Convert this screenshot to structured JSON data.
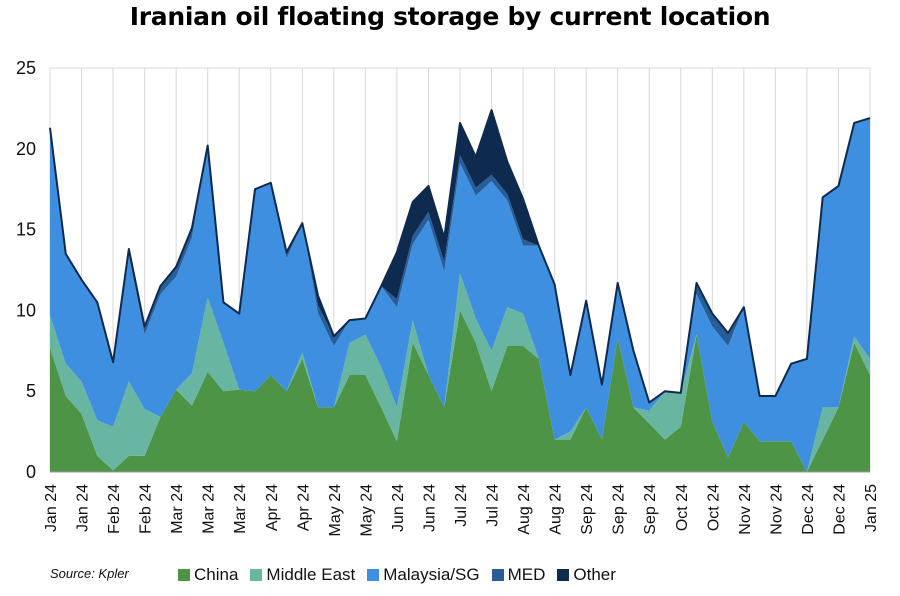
{
  "title": "Iranian oil floating storage by current location",
  "source": "Source: Kpler",
  "chart_data": {
    "type": "area",
    "stacked": true,
    "ylim": [
      0,
      25
    ],
    "yticks": [
      0,
      5,
      10,
      15,
      20,
      25
    ],
    "grid": "vertical",
    "legend_position": "bottom",
    "x_tick_labels": [
      "Jan 24",
      "Jan 24",
      "Feb 24",
      "Feb 24",
      "Mar 24",
      "Mar 24",
      "Mar 24",
      "Apr 24",
      "Apr 24",
      "May 24",
      "May 24",
      "Jun 24",
      "Jun 24",
      "Jul 24",
      "Jul 24",
      "Aug 24",
      "Aug 24",
      "Sep 24",
      "Sep 24",
      "Sep 24",
      "Oct 24",
      "Oct 24",
      "Nov 24",
      "Nov 24",
      "Dec 24",
      "Dec 24",
      "Jan 25"
    ],
    "series": [
      {
        "name": "China",
        "color": "#4e9447",
        "values": [
          7.7,
          4.7,
          3.6,
          1.0,
          0.1,
          1.0,
          1.0,
          3.4,
          5.1,
          4.1,
          6.2,
          5.0,
          5.1,
          5.0,
          6.0,
          5.0,
          7.0,
          4.0,
          4.0,
          6.0,
          6.0,
          4.0,
          1.9,
          8.0,
          6.0,
          4.0,
          10.0,
          8.0,
          5.0,
          7.8,
          7.8,
          7.0,
          2.0,
          2.0,
          4.0,
          2.0,
          8.3,
          4.0,
          3.0,
          2.0,
          2.8,
          8.5,
          3.1,
          0.9,
          3.1,
          1.9,
          1.9,
          1.9,
          0.0,
          2.0,
          4.0,
          8.0,
          6.0
        ]
      },
      {
        "name": "Middle East",
        "color": "#68b6a1",
        "values": [
          2.0,
          2.0,
          2.0,
          2.2,
          2.7,
          4.6,
          2.9,
          0.0,
          0.0,
          2.0,
          4.6,
          3.0,
          0.0,
          0.0,
          0.0,
          0.0,
          0.4,
          0.0,
          0.0,
          2.0,
          2.5,
          2.5,
          2.1,
          1.4,
          0.0,
          0.0,
          2.3,
          1.5,
          2.5,
          2.4,
          2.0,
          0.0,
          0.0,
          0.5,
          0.0,
          0.0,
          0.0,
          0.0,
          0.8,
          3.0,
          2.1,
          0.0,
          0.0,
          0.0,
          0.0,
          0.0,
          0.0,
          0.0,
          0.0,
          2.0,
          0.0,
          0.4,
          1.0
        ]
      },
      {
        "name": "Malaysia/SG",
        "color": "#3e8fe0",
        "values": [
          11.6,
          6.8,
          6.3,
          7.3,
          4.0,
          7.8,
          4.6,
          7.6,
          7.0,
          8.4,
          9.4,
          2.5,
          4.7,
          12.5,
          11.9,
          8.2,
          8.0,
          5.8,
          3.8,
          1.4,
          1.0,
          5.0,
          6.2,
          4.7,
          9.6,
          8.4,
          6.8,
          7.6,
          10.5,
          6.6,
          4.2,
          7.0,
          9.6,
          3.5,
          6.6,
          3.4,
          3.4,
          3.5,
          0.5,
          0.0,
          0.0,
          2.5,
          5.9,
          6.9,
          7.1,
          2.8,
          2.8,
          4.8,
          7.0,
          13.0,
          13.7,
          13.2,
          14.9
        ]
      },
      {
        "name": "MED",
        "color": "#275d99",
        "values": [
          0.0,
          0.0,
          0.0,
          0.0,
          0.0,
          0.4,
          0.5,
          0.5,
          0.6,
          0.6,
          0.0,
          0.0,
          0.0,
          0.0,
          0.0,
          0.4,
          0.0,
          0.5,
          0.6,
          0.0,
          0.0,
          0.0,
          0.5,
          0.5,
          0.5,
          0.6,
          0.5,
          0.5,
          0.4,
          0.4,
          0.4,
          0.0,
          0.0,
          0.0,
          0.0,
          0.0,
          0.0,
          0.0,
          0.0,
          0.0,
          0.0,
          0.7,
          0.8,
          0.8,
          0.0,
          0.0,
          0.0,
          0.0,
          0.0,
          0.0,
          0.0,
          0.0,
          0.0
        ]
      },
      {
        "name": "Other",
        "color": "#0e2a4f",
        "values": [
          0.0,
          0.0,
          0.0,
          0.0,
          0.0,
          0.0,
          0.0,
          0.0,
          0.0,
          0.0,
          0.0,
          0.0,
          0.0,
          0.0,
          0.0,
          0.0,
          0.0,
          0.6,
          0.0,
          0.0,
          0.0,
          0.0,
          2.9,
          2.1,
          1.6,
          1.5,
          2.0,
          1.9,
          4.0,
          2.0,
          2.5,
          0.0,
          0.0,
          0.0,
          0.0,
          0.0,
          0.0,
          0.0,
          0.0,
          0.0,
          0.0,
          0.0,
          0.0,
          0.0,
          0.0,
          0.0,
          0.0,
          0.0,
          0.0,
          0.0,
          0.0,
          0.0,
          0.0
        ]
      }
    ]
  }
}
